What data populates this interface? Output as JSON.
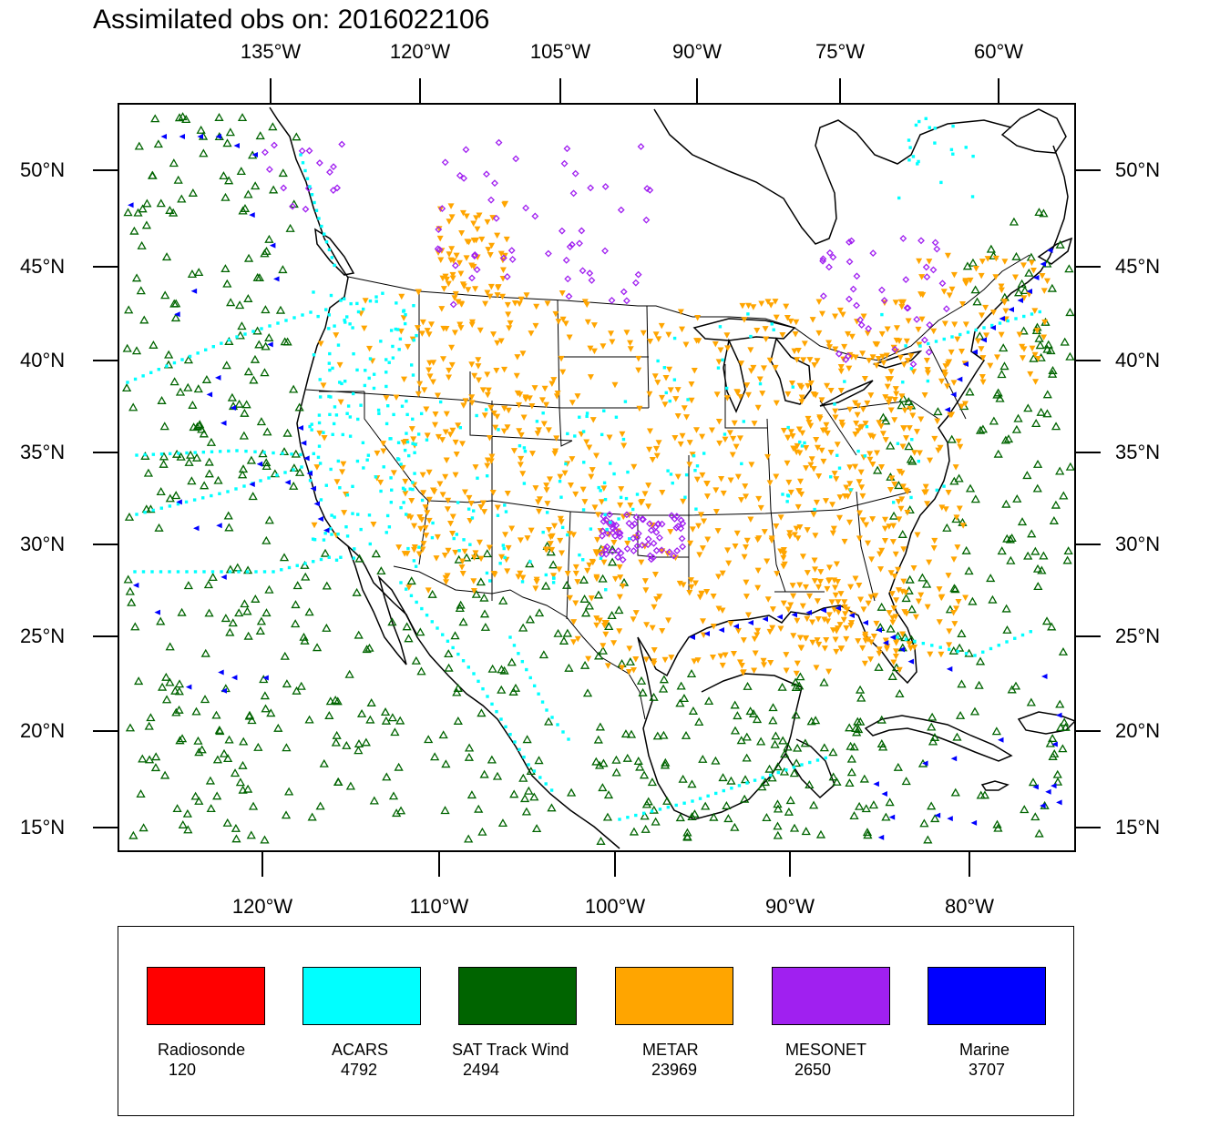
{
  "title": "Assimilated obs on: 2016022106",
  "axes": {
    "top_labels": [
      "135°W",
      "120°W",
      "105°W",
      "90°W",
      "75°W",
      "60°W"
    ],
    "bottom_labels": [
      "120°W",
      "110°W",
      "100°W",
      "90°W",
      "80°W"
    ],
    "lat_labels": [
      "50°N",
      "45°N",
      "40°N",
      "35°N",
      "30°N",
      "25°N",
      "20°N",
      "15°N"
    ]
  },
  "legend": [
    {
      "name": "Radiosonde",
      "count": "120",
      "color": "#ff0000",
      "marker": "square"
    },
    {
      "name": "ACARS",
      "count": "4792",
      "color": "#00ffff",
      "marker": "square"
    },
    {
      "name": "SAT Track Wind",
      "count": "2494",
      "color": "#006400",
      "marker": "triangle-up"
    },
    {
      "name": "METAR",
      "count": "23969",
      "color": "#ffa500",
      "marker": "triangle-down"
    },
    {
      "name": "MESONET",
      "count": "2650",
      "color": "#a020f0",
      "marker": "diamond"
    },
    {
      "name": "Marine",
      "count": "3707",
      "color": "#0000ff",
      "marker": "triangle-left"
    }
  ]
}
